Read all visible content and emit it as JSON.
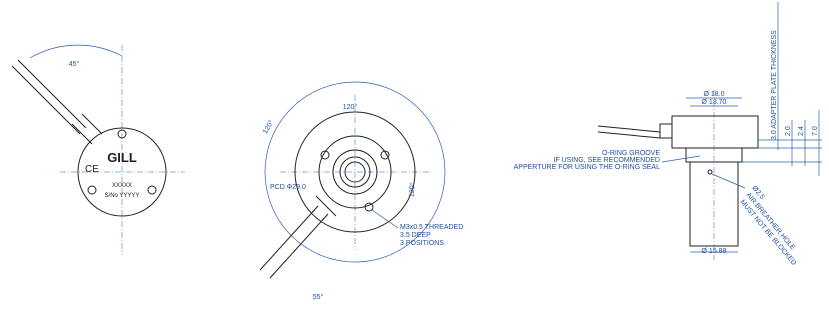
{
  "left_view": {
    "angle": "45°",
    "logo": "GILL",
    "code": "XXXXX",
    "serial": "S/No YYYYY"
  },
  "middle_view": {
    "angle_top": "120°",
    "angle_left": "120°",
    "angle_right": "120°",
    "pcd": "PCD Φ29.0",
    "thread_note": [
      "M3x0.5 THREADED",
      "3.5 DEEP",
      "3 POSITIONS"
    ],
    "angle_cable": "55°"
  },
  "right_view": {
    "outer_diameter": "Ø 18.0",
    "inner_diameter": "Ø 13.70",
    "oring_note": [
      "O-RING GROOVE",
      "IF USING, SEE RECOMMENDED",
      "APPERTURE FOR USING THE O-RING SEAL"
    ],
    "plate_thickness": "3.0 ADAPTER PLATE THICKNESS",
    "dim_a": "2.0",
    "dim_b": "2.4",
    "dim_c": "7.0",
    "hole_note": [
      "Ø2.5",
      "AIR BREATHER HOLE",
      "MUST NOT BE BLOCKED"
    ],
    "body_diameter": "Ø 15.88"
  }
}
